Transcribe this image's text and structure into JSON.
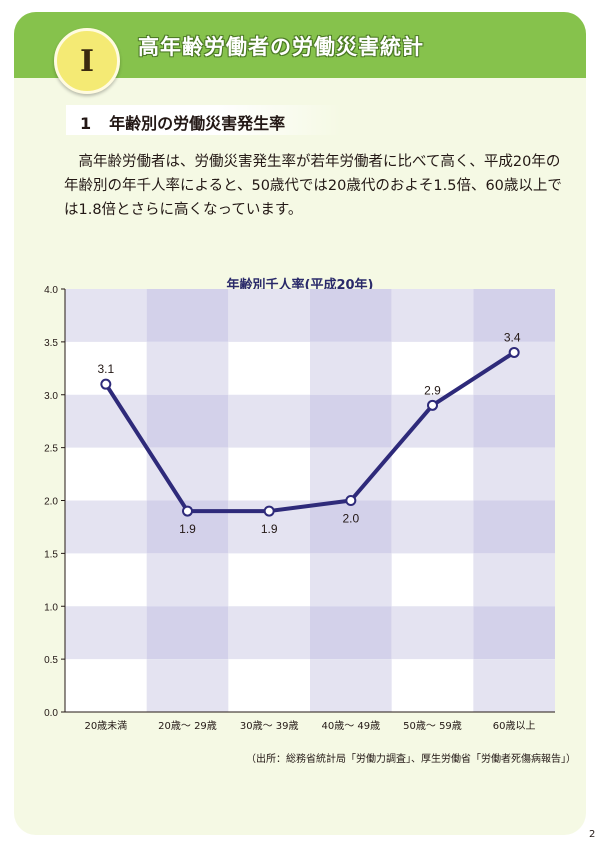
{
  "header": {
    "badge": "I",
    "title": "高年齢労働者の労働災害統計"
  },
  "section": {
    "number": "1",
    "title": "年齢別の労働災害発生率"
  },
  "body": {
    "paragraph": "高年齢労働者は、労働災害発生率が若年労働者に比べて高く、平成20年の年齢別の年千人率によると、50歳代では20歳代のおよそ1.5倍、60歳以上では1.8倍とさらに高くなっています。"
  },
  "chart_data": {
    "type": "line",
    "title": "年齢別千人率(平成20年)",
    "categories": [
      "20歳未満",
      "20歳～ 29歳",
      "30歳～ 39歳",
      "40歳～ 49歳",
      "50歳～ 59歳",
      "60歳以上"
    ],
    "values": [
      3.1,
      1.9,
      1.9,
      2.0,
      2.9,
      3.4
    ],
    "data_labels": [
      "3.1",
      "1.9",
      "1.9",
      "2.0",
      "2.9",
      "3.4"
    ],
    "y_ticks": [
      "0.0",
      "0.5",
      "1.0",
      "1.5",
      "2.0",
      "2.5",
      "3.0",
      "3.5",
      "4.0"
    ],
    "ylim": [
      0,
      4.0
    ],
    "grid": true,
    "legend": "none",
    "colors": {
      "line": "#2e2a7a",
      "band_light": "#e4e3f1",
      "band_dark": "#d3d1ea",
      "marker_fill": "#ffffff"
    }
  },
  "source": "（出所：総務省統計局「労働力調査」、厚生労働省「労働者死傷病報告」）",
  "page_number": "2"
}
